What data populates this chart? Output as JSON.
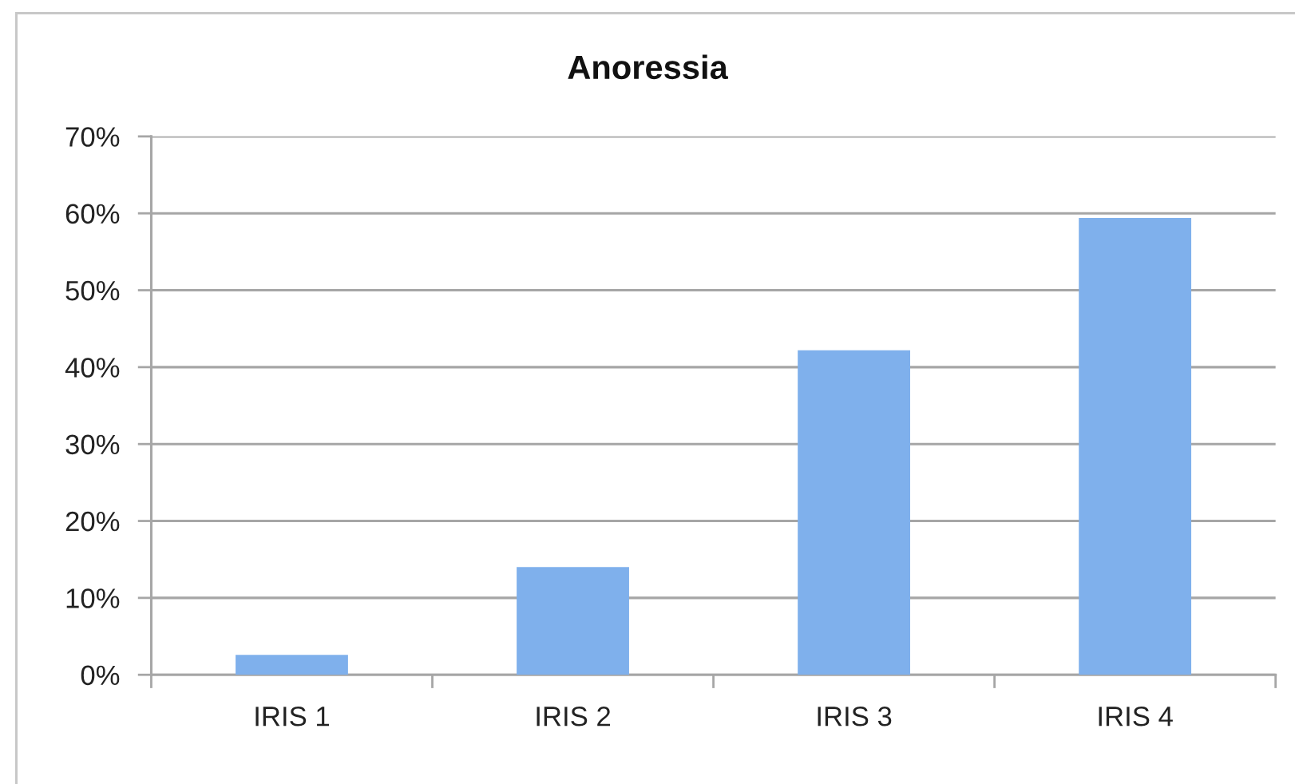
{
  "chart_data": {
    "type": "bar",
    "title": "Anoressia",
    "categories": [
      "IRIS 1",
      "IRIS 2",
      "IRIS 3",
      "IRIS 4"
    ],
    "values": [
      2.6,
      14.0,
      42.2,
      59.4
    ],
    "color": "#7fb0ec",
    "ylim": [
      0,
      70
    ],
    "yticks": [
      {
        "value": 0,
        "label": "0%"
      },
      {
        "value": 10,
        "label": "10%"
      },
      {
        "value": 20,
        "label": "20%"
      },
      {
        "value": 30,
        "label": "30%"
      },
      {
        "value": 40,
        "label": "40%"
      },
      {
        "value": 50,
        "label": "50%"
      },
      {
        "value": 60,
        "label": "60%"
      },
      {
        "value": 70,
        "label": "70%"
      }
    ],
    "grid": "y"
  }
}
